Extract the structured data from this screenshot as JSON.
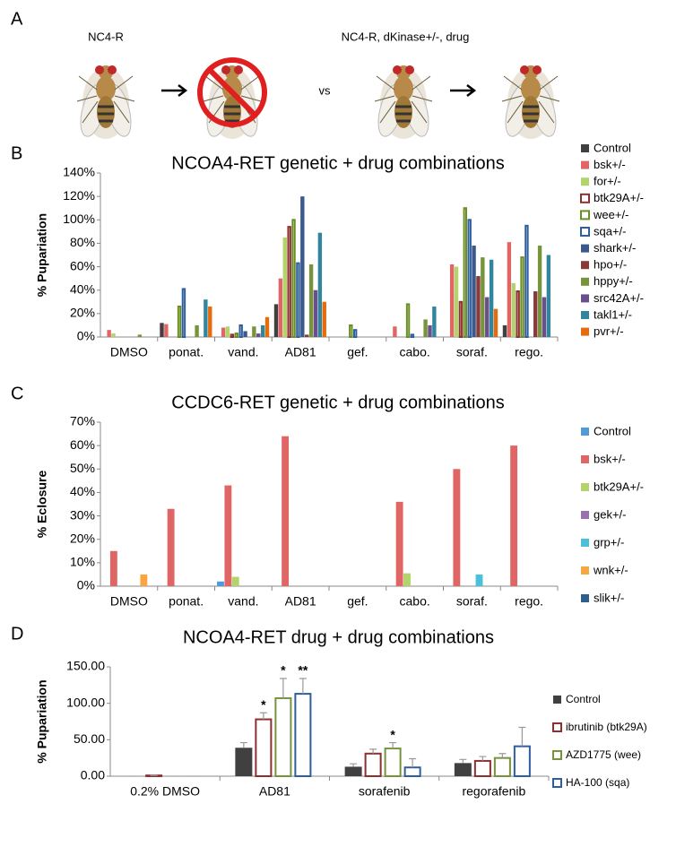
{
  "panel_a": {
    "label": "A",
    "left_caption": "NC4-R",
    "right_caption": "NC4-R, dKinase+/-, drug",
    "middle": "vs"
  },
  "chart_data": [
    {
      "type": "bar",
      "panel": "B",
      "title": "NCOA4-RET genetic + drug combinations",
      "y_label": "% Pupariation",
      "categories": [
        "DMSO",
        "ponat.",
        "vand.",
        "AD81",
        "gef.",
        "cabo.",
        "soraf.",
        "rego."
      ],
      "ylim": [
        0,
        140
      ],
      "yticks": [
        {
          "value": 0,
          "label": "0%"
        },
        {
          "value": 20,
          "label": "20%"
        },
        {
          "value": 40,
          "label": "40%"
        },
        {
          "value": 60,
          "label": "60%"
        },
        {
          "value": 80,
          "label": "80%"
        },
        {
          "value": 100,
          "label": "100%"
        },
        {
          "value": 120,
          "label": "120%"
        },
        {
          "value": 140,
          "label": "140%"
        }
      ],
      "grid": false,
      "series": [
        {
          "name": "Control",
          "color": "#404040",
          "values": [
            0,
            12,
            0,
            28,
            0,
            0,
            0,
            10
          ]
        },
        {
          "name": "bsk+/-",
          "color": "#e06666",
          "values": [
            6,
            11,
            8,
            50,
            0,
            9,
            62,
            81
          ]
        },
        {
          "name": "for+/-",
          "color": "#b3d36b",
          "values": [
            3,
            0,
            9,
            85,
            0,
            0,
            60,
            46
          ]
        },
        {
          "name": "btk29A+/-",
          "color": "#8b2f2f",
          "outline": true,
          "values": [
            0,
            0,
            2,
            94,
            0,
            0,
            30,
            39
          ]
        },
        {
          "name": "wee+/-",
          "color": "#6b8e23",
          "outline": true,
          "values": [
            0,
            26,
            3,
            100,
            10,
            28,
            110,
            68
          ]
        },
        {
          "name": "sqa+/-",
          "color": "#2e5e9e",
          "outline": true,
          "values": [
            0,
            41,
            10,
            63,
            6,
            2,
            100,
            95
          ]
        },
        {
          "name": "shark+/-",
          "color": "#3b5a8c",
          "values": [
            0,
            0,
            5,
            120,
            0,
            0,
            78,
            0
          ]
        },
        {
          "name": "hpo+/-",
          "color": "#8b3a3a",
          "values": [
            0,
            0,
            0,
            2,
            0,
            0,
            52,
            39
          ]
        },
        {
          "name": "hppy+/-",
          "color": "#77933c",
          "values": [
            2,
            10,
            9,
            62,
            0,
            15,
            68,
            78
          ]
        },
        {
          "name": "src42A+/-",
          "color": "#6b4f8c",
          "values": [
            0,
            0,
            3,
            40,
            0,
            10,
            34,
            34
          ]
        },
        {
          "name": "takl1+/-",
          "color": "#31859c",
          "values": [
            0,
            32,
            10,
            89,
            0,
            26,
            66,
            70
          ]
        },
        {
          "name": "pvr+/-",
          "color": "#e46c0a",
          "values": [
            0,
            26,
            17,
            30,
            0,
            0,
            24,
            0
          ]
        }
      ]
    },
    {
      "type": "bar",
      "panel": "C",
      "title": "CCDC6-RET genetic + drug combinations",
      "y_label": "% Eclosure",
      "categories": [
        "DMSO",
        "ponat.",
        "vand.",
        "AD81",
        "gef.",
        "cabo.",
        "soraf.",
        "rego."
      ],
      "ylim": [
        0,
        70
      ],
      "yticks": [
        {
          "value": 0,
          "label": "0%"
        },
        {
          "value": 10,
          "label": "10%"
        },
        {
          "value": 20,
          "label": "20%"
        },
        {
          "value": 30,
          "label": "30%"
        },
        {
          "value": 40,
          "label": "40%"
        },
        {
          "value": 50,
          "label": "50%"
        },
        {
          "value": 60,
          "label": "60%"
        },
        {
          "value": 70,
          "label": "70%"
        }
      ],
      "grid": false,
      "series": [
        {
          "name": "Control",
          "color": "#4f9bd9",
          "values": [
            0,
            0,
            2,
            0,
            0,
            0,
            0,
            0
          ]
        },
        {
          "name": "bsk+/-",
          "color": "#e06666",
          "values": [
            15,
            33,
            43,
            64,
            0,
            36,
            50,
            60
          ]
        },
        {
          "name": "btk29A+/-",
          "color": "#b3d36b",
          "values": [
            0,
            0,
            4,
            0,
            0,
            5.5,
            0,
            0
          ]
        },
        {
          "name": "gek+/-",
          "color": "#9b72b0",
          "values": [
            0,
            0,
            0,
            0,
            0,
            0,
            0,
            0
          ]
        },
        {
          "name": "grp+/-",
          "color": "#4bc0d9",
          "values": [
            0,
            0,
            0,
            0,
            0,
            0,
            5,
            0
          ]
        },
        {
          "name": "wnk+/-",
          "color": "#f9a640",
          "values": [
            5,
            0,
            0,
            0,
            0,
            0,
            0,
            0
          ]
        },
        {
          "name": "slik+/-",
          "color": "#2e5e8c",
          "values": [
            0,
            0,
            0,
            0,
            0,
            0,
            0,
            0
          ]
        }
      ]
    },
    {
      "type": "bar",
      "panel": "D",
      "title": "NCOA4-RET drug + drug combinations",
      "y_label": "% Pupariation",
      "categories": [
        "0.2% DMSO",
        "AD81",
        "sorafenib",
        "regorafenib"
      ],
      "ylim": [
        0,
        150
      ],
      "yticks": [
        {
          "value": 0,
          "label": "0.00"
        },
        {
          "value": 50,
          "label": "50.00"
        },
        {
          "value": 100,
          "label": "100.00"
        },
        {
          "value": 150,
          "label": "150.00"
        }
      ],
      "grid": false,
      "series": [
        {
          "name": "Control",
          "color": "#404040",
          "values": [
            0,
            39,
            13,
            18
          ],
          "errors": [
            0,
            7,
            4,
            5
          ],
          "markers": [
            null,
            null,
            null,
            null
          ]
        },
        {
          "name": "ibrutinib (btk29A)",
          "color": "#8b2f2f",
          "outline": true,
          "values": [
            1,
            78,
            31,
            21
          ],
          "errors": [
            0,
            9,
            6,
            6
          ],
          "markers": [
            null,
            "*",
            null,
            null
          ]
        },
        {
          "name": "AZD1775 (wee)",
          "color": "#77933c",
          "outline": true,
          "values": [
            0,
            107,
            38,
            25
          ],
          "errors": [
            0,
            27,
            8,
            6
          ],
          "markers": [
            null,
            "*",
            "*",
            null
          ]
        },
        {
          "name": "HA-100 (sqa)",
          "color": "#2e5e9e",
          "outline": true,
          "values": [
            0,
            113,
            12,
            41
          ],
          "errors": [
            0,
            21,
            12,
            26
          ],
          "markers": [
            null,
            "**",
            null,
            null
          ]
        }
      ]
    }
  ]
}
